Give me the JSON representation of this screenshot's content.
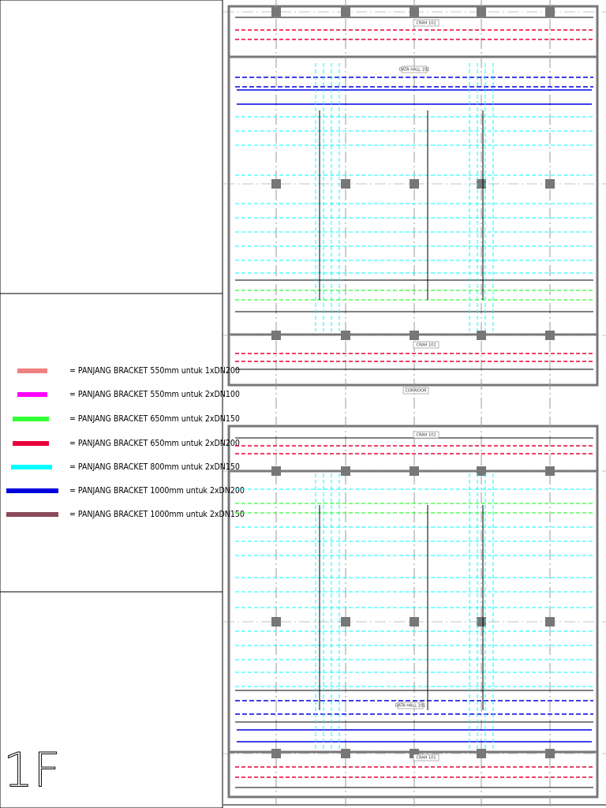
{
  "legend": {
    "items": [
      {
        "label": "= PANJANG BRACKET 550mm untuk 1xDN200",
        "color": "#f08080"
      },
      {
        "label": "= PANJANG BRACKET 550mm untuk 2xDN100",
        "color": "#ff00ff"
      },
      {
        "label": "= PANJANG BRACKET 650mm untuk 2xDN150",
        "color": "#33ff33"
      },
      {
        "label": "= PANJANG BRACKET 650mm untuk 2xDN200",
        "color": "#e8003c"
      },
      {
        "label": "= PANJANG BRACKET 800mm untuk 2xDN150",
        "color": "#00ffff"
      },
      {
        "label": "= PANJANG BRACKET 1000mm untuk 2xDN200",
        "color": "#0000dd"
      },
      {
        "label": "= PANJANG BRACKET 1000mm untuk 2xDN150",
        "color": "#8b4a5a"
      }
    ]
  },
  "floor": {
    "label": "1F"
  },
  "drawing": {
    "rooms": [
      "CRAH 102",
      "DATA HALL 102",
      "CRAH 102",
      "CORRIDOR",
      "CRAH 102",
      "DATA HALL 101",
      "CRAH 101"
    ]
  }
}
